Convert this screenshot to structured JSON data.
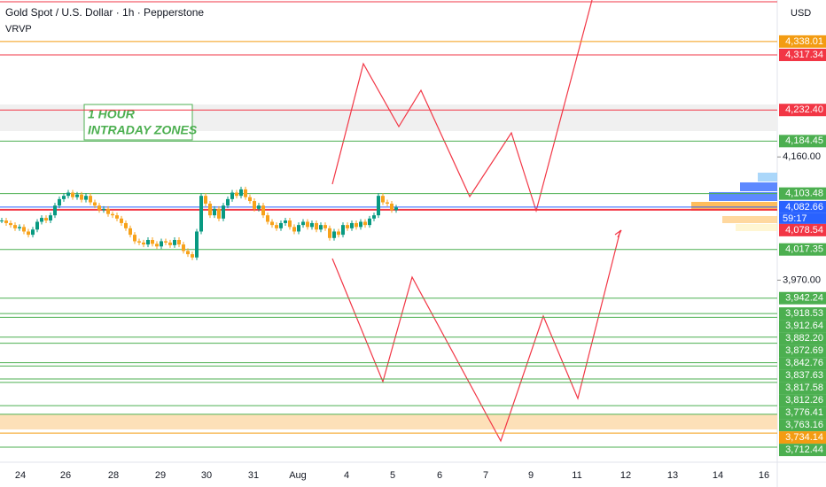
{
  "chart_data": {
    "type": "price",
    "title": "Gold Spot / U.S. Dollar · 1h · Pepperstone",
    "indicator": "VRVP",
    "annotation": [
      "1 HOUR",
      "INTRADAY ZONES"
    ],
    "currency": "USD",
    "countdown": "59:17",
    "ylim": [
      3692,
      4402
    ],
    "yticks": [
      {
        "value": 4160,
        "label": "4,160.00"
      },
      {
        "value": 3970,
        "label": "3,970.00"
      }
    ],
    "x_labels": [
      "24",
      "26",
      "28",
      "29",
      "30",
      "31",
      "Aug",
      "4",
      "5",
      "6",
      "7",
      "9",
      "11",
      "12",
      "13",
      "14",
      "16"
    ],
    "values": [
      4062,
      4058,
      4055,
      4050,
      4052,
      4045,
      4040,
      4048,
      4060,
      4066,
      4062,
      4070,
      4085,
      4095,
      4100,
      4105,
      4098,
      4102,
      4094,
      4100,
      4090,
      4085,
      4078,
      4080,
      4072,
      4070,
      4065,
      4058,
      4050,
      4040,
      4030,
      4028,
      4025,
      4032,
      4026,
      4022,
      4030,
      4028,
      4024,
      4032,
      4025,
      4015,
      4010,
      4005,
      4045,
      4100,
      4088,
      4070,
      4080,
      4065,
      4085,
      4095,
      4105,
      4100,
      4110,
      4098,
      4092,
      4080,
      4085,
      4070,
      4060,
      4055,
      4050,
      4058,
      4062,
      4052,
      4045,
      4055,
      4060,
      4052,
      4058,
      4048,
      4055,
      4050,
      4035,
      4045,
      4040,
      4055,
      4050,
      4058,
      4052,
      4060,
      4055,
      4065,
      4070,
      4100,
      4090,
      4088,
      4078,
      4082
    ],
    "levels": [
      {
        "price": 4338.01,
        "label": "4,338.01",
        "color": "#f39c12"
      },
      {
        "price": 4317.34,
        "label": "4,317.34",
        "color": "#f23645"
      },
      {
        "price": 4232.4,
        "label": "4,232.40",
        "color": "#f23645"
      },
      {
        "price": 4184.45,
        "label": "4,184.45",
        "color": "#4caf50"
      },
      {
        "price": 4103.48,
        "label": "4,103.48",
        "color": "#4caf50"
      },
      {
        "price": 4082.66,
        "label": "4,082.66",
        "color": "#2962ff"
      },
      {
        "price": 4078.54,
        "label": "4,078.54",
        "color": "#f23645"
      },
      {
        "price": 4017.35,
        "label": "4,017.35",
        "color": "#4caf50"
      },
      {
        "price": 3942.24,
        "label": "3,942.24",
        "color": "#4caf50"
      },
      {
        "price": 3918.53,
        "label": "3,918.53",
        "color": "#4caf50"
      },
      {
        "price": 3912.64,
        "label": "3,912.64",
        "color": "#4caf50"
      },
      {
        "price": 3882.2,
        "label": "3,882.20",
        "color": "#4caf50"
      },
      {
        "price": 3872.69,
        "label": "3,872.69",
        "color": "#4caf50"
      },
      {
        "price": 3842.76,
        "label": "3,842.76",
        "color": "#4caf50"
      },
      {
        "price": 3837.63,
        "label": "3,837.63",
        "color": "#4caf50"
      },
      {
        "price": 3817.58,
        "label": "3,817.58",
        "color": "#4caf50"
      },
      {
        "price": 3812.26,
        "label": "3,812.26",
        "color": "#4caf50"
      },
      {
        "price": 3776.41,
        "label": "3,776.41",
        "color": "#4caf50"
      },
      {
        "price": 3763.16,
        "label": "3,763.16",
        "color": "#4caf50"
      },
      {
        "price": 3734.14,
        "label": "3,734.14",
        "color": "#f39c12"
      },
      {
        "price": 3712.44,
        "label": "3,712.44",
        "color": "#4caf50"
      }
    ]
  }
}
